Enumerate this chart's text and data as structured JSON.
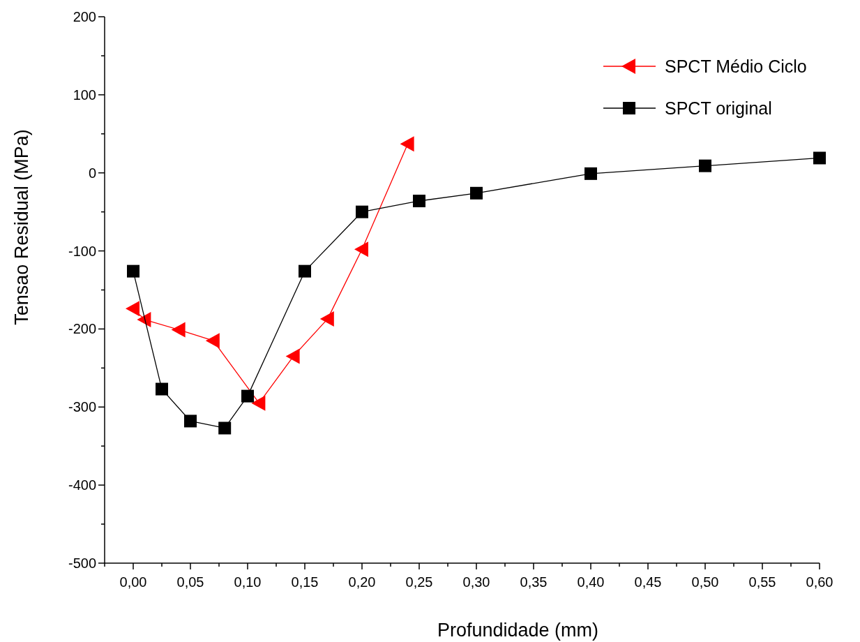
{
  "chart_data": {
    "type": "line",
    "xlabel": "Profundidade (mm)",
    "ylabel": "Tensao Residual (MPa)",
    "xlim": [
      -0.025,
      0.6
    ],
    "ylim": [
      -500,
      200
    ],
    "xticks": [
      {
        "value": -0.025,
        "label": null
      },
      {
        "value": 0,
        "label": "0,00"
      },
      {
        "value": 0.025,
        "label": null
      },
      {
        "value": 0.05,
        "label": "0,05"
      },
      {
        "value": 0.075,
        "label": null
      },
      {
        "value": 0.1,
        "label": "0,10"
      },
      {
        "value": 0.125,
        "label": null
      },
      {
        "value": 0.15,
        "label": "0,15"
      },
      {
        "value": 0.175,
        "label": null
      },
      {
        "value": 0.2,
        "label": "0,20"
      },
      {
        "value": 0.225,
        "label": null
      },
      {
        "value": 0.25,
        "label": "0,25"
      },
      {
        "value": 0.275,
        "label": null
      },
      {
        "value": 0.3,
        "label": "0,30"
      },
      {
        "value": 0.325,
        "label": null
      },
      {
        "value": 0.35,
        "label": "0,35"
      },
      {
        "value": 0.375,
        "label": null
      },
      {
        "value": 0.4,
        "label": "0,40"
      },
      {
        "value": 0.425,
        "label": null
      },
      {
        "value": 0.45,
        "label": "0,45"
      },
      {
        "value": 0.475,
        "label": null
      },
      {
        "value": 0.5,
        "label": "0,50"
      },
      {
        "value": 0.525,
        "label": null
      },
      {
        "value": 0.55,
        "label": "0,55"
      },
      {
        "value": 0.575,
        "label": null
      },
      {
        "value": 0.6,
        "label": "0,60"
      }
    ],
    "yticks": [
      -500,
      {
        "value": -450,
        "label": null
      },
      -400,
      {
        "value": -350,
        "label": null
      },
      -300,
      {
        "value": -250,
        "label": null
      },
      -200,
      {
        "value": -150,
        "label": null
      },
      -100,
      {
        "value": -50,
        "label": null
      },
      0,
      {
        "value": 50,
        "label": null
      },
      100,
      {
        "value": 150,
        "label": null
      },
      200
    ],
    "grid": false,
    "legend": "top right",
    "line_style": "solid",
    "series": [
      {
        "name": "SPCT Médio Ciclo",
        "color": "#ff0000",
        "marker": "triangle",
        "x": [
          0.0,
          0.01,
          0.04,
          0.07,
          0.11,
          0.14,
          0.17,
          0.2,
          0.24
        ],
        "values": [
          -174,
          -188,
          -201,
          -215,
          -295,
          -235,
          -187,
          -98,
          37
        ]
      },
      {
        "name": "SPCT original",
        "color": "#000000",
        "marker": "square",
        "x": [
          0.0,
          0.025,
          0.05,
          0.08,
          0.1,
          0.15,
          0.2,
          0.25,
          0.3,
          0.4,
          0.5,
          0.6
        ],
        "values": [
          -126,
          -277,
          -318,
          -327,
          -286,
          -126,
          -50,
          -36,
          -26,
          -1,
          9,
          19
        ]
      }
    ]
  }
}
